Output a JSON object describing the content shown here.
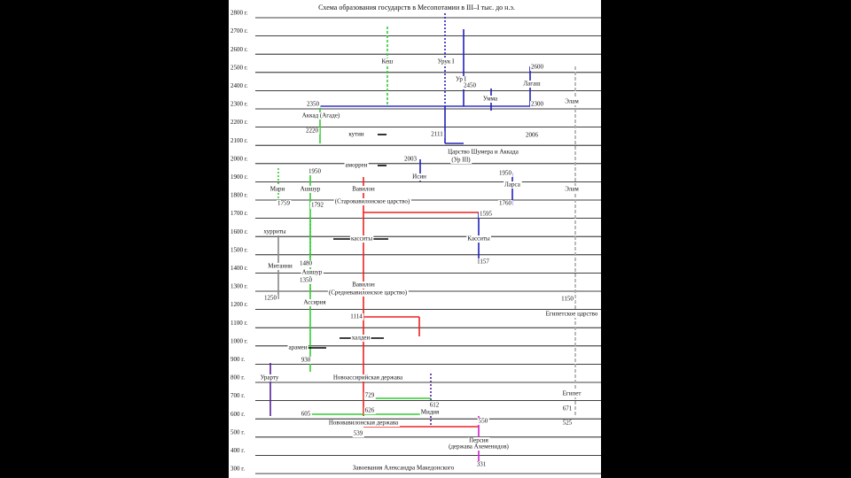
{
  "title": "Схема образования государств в Месопотамии в III–I тыс. до н.э.",
  "ticks": [
    "2800 г.",
    "2700 г.",
    "2600 г.",
    "2500 г.",
    "2400 г.",
    "2300 г.",
    "2200 г.",
    "2100 г.",
    "2000 г.",
    "1900 г.",
    "1800 г.",
    "1700 г.",
    "1600 г.",
    "1500 г.",
    "1400 г.",
    "1300 г.",
    "1200 г.",
    "1100 г.",
    "1000 г.",
    "900 г.",
    "800 г.",
    "700 г.",
    "600 г.",
    "500 г.",
    "400 г.",
    "300 г."
  ],
  "labels": [
    "Кеш",
    "Урук I",
    "2600",
    "Ур I",
    "2450",
    "Лагаш",
    "Умма",
    "2300",
    "Элам",
    "2350",
    "Аккад (Агаде)",
    "2220",
    "кутии",
    "2111",
    "2006",
    "Царство Шумера и Аккада",
    "(Ур III)",
    "2003",
    "аморреи",
    "1950",
    "Исин",
    "1950",
    "Ларса",
    "Мари",
    "Ашшур",
    "Вавилон",
    "Элам",
    "1759",
    "1792",
    "(Старовавилонское царство)",
    "1760",
    "1595",
    "хурриты",
    "касситы",
    "Касситы",
    "Митанни",
    "1480",
    "Ашшур",
    "1350",
    "1157",
    "Вавилон",
    "(Средневавилонское царство)",
    "1250",
    "Ассирия",
    "1150",
    "Египетское царство",
    "1114",
    "халдеи",
    "арамеи",
    "930",
    "Урарту",
    "Новоассирийская держава",
    "729",
    "626",
    "612",
    "Мидия",
    "605",
    "Египет",
    "671",
    "525",
    "Нововавилонская держава",
    "539",
    "550",
    "Персия",
    "(держава Ахеменидов)",
    "Завоевания Александра Македонского",
    "331"
  ]
}
